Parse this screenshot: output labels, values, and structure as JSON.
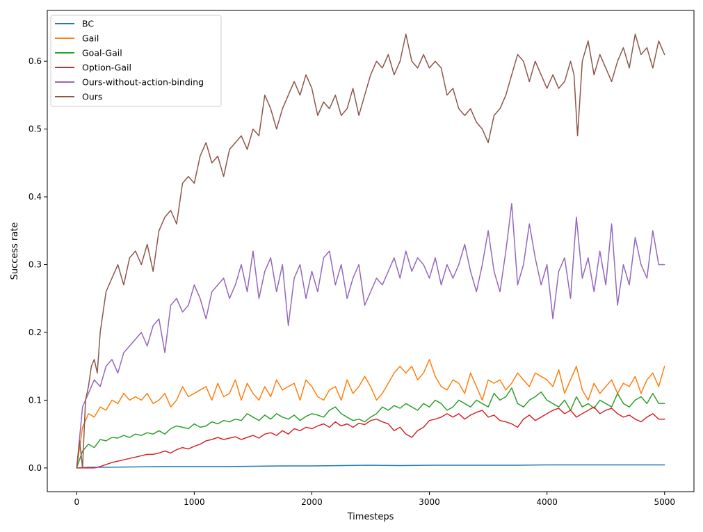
{
  "chart_data": {
    "type": "line",
    "title": "",
    "xlabel": "Timesteps",
    "ylabel": "Success rate",
    "xlim": [
      -250,
      5250
    ],
    "ylim": [
      -0.035,
      0.675
    ],
    "xticks": [
      0,
      1000,
      2000,
      3000,
      4000,
      5000
    ],
    "xtick_labels": [
      "0",
      "1000",
      "2000",
      "3000",
      "4000",
      "5000"
    ],
    "yticks": [
      0.0,
      0.1,
      0.2,
      0.3,
      0.4,
      0.5,
      0.6
    ],
    "ytick_labels": [
      "0.0",
      "0.1",
      "0.2",
      "0.3",
      "0.4",
      "0.5",
      "0.6"
    ],
    "grid": false,
    "legend_position": "top-left",
    "series": [
      {
        "name": "BC",
        "color": "#1f77b4",
        "x": [
          0,
          100,
          250,
          500,
          750,
          1000,
          1250,
          1500,
          1750,
          2000,
          2250,
          2500,
          2750,
          3000,
          3250,
          3500,
          3750,
          4000,
          4250,
          4500,
          4750,
          5000
        ],
        "y": [
          0.0,
          0.001,
          0.001,
          0.0015,
          0.002,
          0.002,
          0.002,
          0.0025,
          0.003,
          0.003,
          0.0035,
          0.004,
          0.0035,
          0.004,
          0.004,
          0.004,
          0.004,
          0.0045,
          0.0045,
          0.0045,
          0.0045,
          0.0045
        ]
      },
      {
        "name": "Gail",
        "color": "#ff7f0e",
        "x": [
          0,
          50,
          100,
          150,
          200,
          250,
          300,
          350,
          400,
          450,
          500,
          550,
          600,
          650,
          700,
          750,
          800,
          850,
          900,
          950,
          1000,
          1050,
          1100,
          1150,
          1200,
          1250,
          1300,
          1350,
          1400,
          1450,
          1500,
          1550,
          1600,
          1650,
          1700,
          1750,
          1800,
          1850,
          1900,
          1950,
          2000,
          2050,
          2100,
          2150,
          2200,
          2250,
          2300,
          2350,
          2400,
          2450,
          2500,
          2550,
          2600,
          2650,
          2700,
          2750,
          2800,
          2850,
          2900,
          2950,
          3000,
          3050,
          3100,
          3150,
          3200,
          3250,
          3300,
          3350,
          3400,
          3450,
          3500,
          3550,
          3600,
          3650,
          3700,
          3750,
          3800,
          3850,
          3900,
          3950,
          4000,
          4050,
          4100,
          4150,
          4200,
          4250,
          4300,
          4350,
          4400,
          4450,
          4500,
          4550,
          4600,
          4650,
          4700,
          4750,
          4800,
          4850,
          4900,
          4950,
          5000
        ],
        "y": [
          0.0,
          0.06,
          0.08,
          0.075,
          0.09,
          0.085,
          0.1,
          0.095,
          0.11,
          0.1,
          0.105,
          0.1,
          0.11,
          0.095,
          0.1,
          0.11,
          0.09,
          0.1,
          0.12,
          0.105,
          0.11,
          0.115,
          0.12,
          0.1,
          0.125,
          0.105,
          0.11,
          0.13,
          0.1,
          0.125,
          0.11,
          0.1,
          0.12,
          0.105,
          0.13,
          0.115,
          0.12,
          0.125,
          0.1,
          0.13,
          0.12,
          0.105,
          0.1,
          0.115,
          0.12,
          0.1,
          0.13,
          0.11,
          0.12,
          0.135,
          0.12,
          0.1,
          0.11,
          0.125,
          0.14,
          0.15,
          0.14,
          0.15,
          0.13,
          0.14,
          0.16,
          0.135,
          0.12,
          0.115,
          0.13,
          0.125,
          0.11,
          0.14,
          0.12,
          0.1,
          0.13,
          0.125,
          0.13,
          0.115,
          0.125,
          0.14,
          0.13,
          0.12,
          0.14,
          0.135,
          0.13,
          0.12,
          0.145,
          0.11,
          0.13,
          0.15,
          0.115,
          0.1,
          0.125,
          0.11,
          0.12,
          0.13,
          0.11,
          0.125,
          0.12,
          0.135,
          0.11,
          0.13,
          0.14,
          0.12,
          0.15
        ]
      },
      {
        "name": "Goal-Gail",
        "color": "#2ca02c",
        "x": [
          0,
          50,
          100,
          150,
          200,
          250,
          300,
          350,
          400,
          450,
          500,
          550,
          600,
          650,
          700,
          750,
          800,
          850,
          900,
          950,
          1000,
          1050,
          1100,
          1150,
          1200,
          1250,
          1300,
          1350,
          1400,
          1450,
          1500,
          1550,
          1600,
          1650,
          1700,
          1750,
          1800,
          1850,
          1900,
          1950,
          2000,
          2050,
          2100,
          2150,
          2200,
          2250,
          2300,
          2350,
          2400,
          2450,
          2500,
          2550,
          2600,
          2650,
          2700,
          2750,
          2800,
          2850,
          2900,
          2950,
          3000,
          3050,
          3100,
          3150,
          3200,
          3250,
          3300,
          3350,
          3400,
          3450,
          3500,
          3550,
          3600,
          3650,
          3700,
          3750,
          3800,
          3850,
          3900,
          3950,
          4000,
          4050,
          4100,
          4150,
          4200,
          4250,
          4300,
          4350,
          4400,
          4450,
          4500,
          4550,
          4600,
          4650,
          4700,
          4750,
          4800,
          4850,
          4900,
          4950,
          5000
        ],
        "y": [
          0.0,
          0.025,
          0.035,
          0.03,
          0.042,
          0.04,
          0.045,
          0.044,
          0.048,
          0.045,
          0.05,
          0.048,
          0.052,
          0.05,
          0.055,
          0.05,
          0.058,
          0.062,
          0.06,
          0.058,
          0.065,
          0.06,
          0.062,
          0.068,
          0.065,
          0.07,
          0.068,
          0.072,
          0.07,
          0.08,
          0.075,
          0.07,
          0.078,
          0.072,
          0.08,
          0.075,
          0.072,
          0.078,
          0.07,
          0.076,
          0.08,
          0.078,
          0.075,
          0.085,
          0.09,
          0.08,
          0.075,
          0.07,
          0.072,
          0.068,
          0.075,
          0.08,
          0.09,
          0.085,
          0.092,
          0.088,
          0.095,
          0.09,
          0.085,
          0.095,
          0.09,
          0.1,
          0.095,
          0.085,
          0.09,
          0.1,
          0.095,
          0.09,
          0.1,
          0.095,
          0.09,
          0.11,
          0.1,
          0.105,
          0.118,
          0.095,
          0.09,
          0.1,
          0.105,
          0.112,
          0.1,
          0.095,
          0.09,
          0.1,
          0.085,
          0.105,
          0.09,
          0.095,
          0.088,
          0.1,
          0.095,
          0.09,
          0.11,
          0.095,
          0.09,
          0.1,
          0.105,
          0.095,
          0.11,
          0.095,
          0.095
        ]
      },
      {
        "name": "Option-Gail",
        "color": "#d62728",
        "x": [
          0,
          50,
          100,
          150,
          200,
          250,
          300,
          350,
          400,
          450,
          500,
          550,
          600,
          650,
          700,
          750,
          800,
          850,
          900,
          950,
          1000,
          1050,
          1100,
          1150,
          1200,
          1250,
          1300,
          1350,
          1400,
          1450,
          1500,
          1550,
          1600,
          1650,
          1700,
          1750,
          1800,
          1850,
          1900,
          1950,
          2000,
          2050,
          2100,
          2150,
          2200,
          2250,
          2300,
          2350,
          2400,
          2450,
          2500,
          2550,
          2600,
          2650,
          2700,
          2750,
          2800,
          2850,
          2900,
          2950,
          3000,
          3050,
          3100,
          3150,
          3200,
          3250,
          3300,
          3350,
          3400,
          3450,
          3500,
          3550,
          3600,
          3650,
          3700,
          3750,
          3800,
          3850,
          3900,
          3950,
          4000,
          4050,
          4100,
          4150,
          4200,
          4250,
          4300,
          4350,
          4400,
          4450,
          4500,
          4550,
          4600,
          4650,
          4700,
          4750,
          4800,
          4850,
          4900,
          4950,
          5000
        ],
        "y": [
          0.0,
          0.0,
          0.0,
          0.0,
          0.002,
          0.005,
          0.008,
          0.01,
          0.012,
          0.014,
          0.016,
          0.018,
          0.02,
          0.02,
          0.022,
          0.025,
          0.022,
          0.027,
          0.03,
          0.028,
          0.032,
          0.035,
          0.04,
          0.042,
          0.045,
          0.042,
          0.044,
          0.046,
          0.042,
          0.045,
          0.048,
          0.044,
          0.05,
          0.052,
          0.048,
          0.055,
          0.05,
          0.058,
          0.055,
          0.06,
          0.058,
          0.062,
          0.065,
          0.06,
          0.068,
          0.062,
          0.065,
          0.06,
          0.066,
          0.064,
          0.07,
          0.072,
          0.068,
          0.065,
          0.055,
          0.06,
          0.05,
          0.045,
          0.055,
          0.06,
          0.07,
          0.072,
          0.075,
          0.08,
          0.075,
          0.08,
          0.072,
          0.078,
          0.082,
          0.085,
          0.075,
          0.078,
          0.07,
          0.068,
          0.065,
          0.06,
          0.072,
          0.078,
          0.07,
          0.075,
          0.08,
          0.085,
          0.088,
          0.08,
          0.085,
          0.075,
          0.08,
          0.085,
          0.09,
          0.08,
          0.085,
          0.088,
          0.08,
          0.075,
          0.078,
          0.072,
          0.068,
          0.075,
          0.08,
          0.072,
          0.072
        ]
      },
      {
        "name": "Ours-without-action-binding",
        "color": "#9467bd",
        "x": [
          0,
          50,
          100,
          150,
          200,
          250,
          300,
          350,
          400,
          450,
          500,
          550,
          600,
          650,
          700,
          750,
          800,
          850,
          900,
          950,
          1000,
          1050,
          1100,
          1150,
          1200,
          1250,
          1300,
          1350,
          1400,
          1450,
          1500,
          1550,
          1600,
          1650,
          1700,
          1750,
          1800,
          1850,
          1900,
          1950,
          2000,
          2050,
          2100,
          2150,
          2200,
          2250,
          2300,
          2350,
          2400,
          2450,
          2500,
          2550,
          2600,
          2650,
          2700,
          2750,
          2800,
          2850,
          2900,
          2950,
          3000,
          3050,
          3100,
          3150,
          3200,
          3250,
          3300,
          3350,
          3400,
          3450,
          3500,
          3550,
          3600,
          3650,
          3700,
          3750,
          3800,
          3850,
          3900,
          3950,
          4000,
          4050,
          4100,
          4150,
          4200,
          4250,
          4300,
          4350,
          4400,
          4450,
          4500,
          4550,
          4600,
          4650,
          4700,
          4750,
          4800,
          4850,
          4900,
          4950,
          5000
        ],
        "y": [
          0.0,
          0.09,
          0.11,
          0.13,
          0.12,
          0.15,
          0.16,
          0.14,
          0.17,
          0.18,
          0.19,
          0.2,
          0.18,
          0.21,
          0.22,
          0.17,
          0.24,
          0.25,
          0.23,
          0.24,
          0.27,
          0.25,
          0.22,
          0.26,
          0.27,
          0.28,
          0.25,
          0.27,
          0.3,
          0.26,
          0.32,
          0.25,
          0.29,
          0.31,
          0.26,
          0.3,
          0.21,
          0.28,
          0.3,
          0.25,
          0.29,
          0.26,
          0.31,
          0.32,
          0.27,
          0.3,
          0.25,
          0.28,
          0.3,
          0.24,
          0.26,
          0.28,
          0.27,
          0.29,
          0.31,
          0.28,
          0.32,
          0.29,
          0.31,
          0.3,
          0.28,
          0.31,
          0.27,
          0.3,
          0.28,
          0.3,
          0.33,
          0.29,
          0.26,
          0.3,
          0.35,
          0.29,
          0.26,
          0.32,
          0.39,
          0.27,
          0.3,
          0.36,
          0.31,
          0.27,
          0.3,
          0.22,
          0.29,
          0.31,
          0.25,
          0.37,
          0.28,
          0.31,
          0.26,
          0.32,
          0.27,
          0.36,
          0.24,
          0.3,
          0.27,
          0.34,
          0.3,
          0.28,
          0.35,
          0.3,
          0.3
        ]
      },
      {
        "name": "Ours",
        "color": "#8c564b",
        "x": [
          0,
          25,
          50,
          75,
          100,
          125,
          150,
          175,
          200,
          225,
          250,
          300,
          350,
          400,
          450,
          500,
          550,
          600,
          650,
          700,
          750,
          800,
          850,
          900,
          950,
          1000,
          1050,
          1100,
          1150,
          1200,
          1250,
          1300,
          1350,
          1400,
          1450,
          1500,
          1550,
          1600,
          1650,
          1700,
          1750,
          1800,
          1850,
          1900,
          1950,
          2000,
          2050,
          2100,
          2150,
          2200,
          2250,
          2300,
          2350,
          2400,
          2450,
          2500,
          2550,
          2600,
          2650,
          2700,
          2750,
          2800,
          2850,
          2900,
          2950,
          3000,
          3050,
          3100,
          3150,
          3200,
          3250,
          3300,
          3350,
          3400,
          3450,
          3500,
          3550,
          3600,
          3650,
          3700,
          3750,
          3800,
          3850,
          3900,
          3950,
          4000,
          4050,
          4100,
          4150,
          4200,
          4230,
          4260,
          4300,
          4350,
          4400,
          4450,
          4500,
          4550,
          4600,
          4650,
          4700,
          4750,
          4800,
          4850,
          4900,
          4950,
          5000
        ],
        "y": [
          0.0,
          0.04,
          0.0,
          0.1,
          0.12,
          0.15,
          0.16,
          0.14,
          0.2,
          0.23,
          0.26,
          0.28,
          0.3,
          0.27,
          0.31,
          0.32,
          0.3,
          0.33,
          0.29,
          0.35,
          0.37,
          0.38,
          0.36,
          0.42,
          0.43,
          0.42,
          0.46,
          0.48,
          0.45,
          0.46,
          0.43,
          0.47,
          0.48,
          0.49,
          0.47,
          0.5,
          0.49,
          0.55,
          0.53,
          0.5,
          0.53,
          0.55,
          0.57,
          0.55,
          0.58,
          0.56,
          0.52,
          0.54,
          0.53,
          0.55,
          0.52,
          0.53,
          0.56,
          0.52,
          0.55,
          0.58,
          0.6,
          0.59,
          0.61,
          0.58,
          0.6,
          0.64,
          0.6,
          0.59,
          0.61,
          0.59,
          0.6,
          0.59,
          0.55,
          0.56,
          0.53,
          0.52,
          0.53,
          0.51,
          0.5,
          0.48,
          0.52,
          0.53,
          0.55,
          0.58,
          0.61,
          0.6,
          0.57,
          0.6,
          0.58,
          0.56,
          0.58,
          0.56,
          0.57,
          0.6,
          0.58,
          0.49,
          0.6,
          0.63,
          0.58,
          0.61,
          0.59,
          0.57,
          0.6,
          0.62,
          0.59,
          0.64,
          0.61,
          0.62,
          0.59,
          0.63,
          0.61
        ]
      }
    ]
  }
}
